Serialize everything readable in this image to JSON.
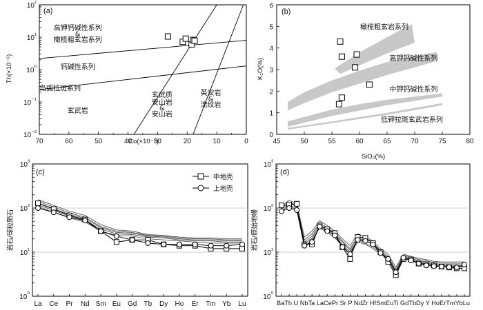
{
  "chart_data": [
    {
      "panel": "(a)",
      "type": "scatter",
      "xlabel": "Co(×10⁻⁶)",
      "ylabel": "Th(×10⁻⁶)",
      "xscale": "linear-reversed",
      "yscale": "log",
      "xlim": [
        70,
        0
      ],
      "ylim": [
        0.01,
        100
      ],
      "xticks": [
        "70",
        "60",
        "50",
        "40",
        "30",
        "20",
        "10",
        "0"
      ],
      "yticks": [
        "10⁻²",
        "10⁻¹",
        "10⁰",
        "10¹",
        "10²"
      ],
      "boundaries": [
        {
          "name": "upper",
          "points": [
            [
              70,
              2.2
            ],
            [
              0,
              8.0
            ]
          ]
        },
        {
          "name": "lower",
          "points": [
            [
              70,
              0.24
            ],
            [
              0,
              1.3
            ]
          ]
        },
        {
          "name": "left-diagonal",
          "points": [
            [
              38,
              0.01
            ],
            [
              10,
              100
            ]
          ]
        },
        {
          "name": "right-diagonal",
          "points": [
            [
              18,
              0.01
            ],
            [
              1,
              100
            ]
          ]
        }
      ],
      "field_labels": [
        {
          "text": "高钾钙碱性系列",
          "x": 57,
          "y": 20
        },
        {
          "text": "&",
          "x": 57,
          "y": 13
        },
        {
          "text": "橄榄粗玄岩系列",
          "x": 57,
          "y": 8.6
        },
        {
          "text": "钙碱性系列",
          "x": 57,
          "y": 1.25
        },
        {
          "text": "岛弧拉斑系列",
          "x": 63,
          "y": 0.27
        },
        {
          "text": "玄武岩",
          "x": 57,
          "y": 0.055
        },
        {
          "text": "玄武质",
          "x": 28.5,
          "y": 0.17
        },
        {
          "text": "安山岩",
          "x": 28.5,
          "y": 0.1
        },
        {
          "text": "&",
          "x": 28.5,
          "y": 0.068
        },
        {
          "text": "安山岩",
          "x": 28.5,
          "y": 0.043
        },
        {
          "text": "英安岩",
          "x": 12,
          "y": 0.2
        },
        {
          "text": "&",
          "x": 12,
          "y": 0.13
        },
        {
          "text": "流纹岩",
          "x": 12,
          "y": 0.085
        }
      ],
      "samples": [
        {
          "x": 26.5,
          "y": 10.5
        },
        {
          "x": 21.5,
          "y": 7.2
        },
        {
          "x": 20.5,
          "y": 9.0
        },
        {
          "x": 18.5,
          "y": 6.0
        },
        {
          "x": 18.0,
          "y": 8.2
        },
        {
          "x": 17.5,
          "y": 7.8
        }
      ]
    },
    {
      "panel": "(b)",
      "type": "scatter",
      "xlabel": "SiO₂(%)",
      "ylabel": "K₂O(%)",
      "xlim": [
        45,
        80
      ],
      "ylim": [
        0,
        6
      ],
      "xticks": [
        "45",
        "50",
        "55",
        "60",
        "65",
        "70",
        "75",
        "80"
      ],
      "yticks": [
        "0",
        "1",
        "2",
        "3",
        "4",
        "5",
        "6"
      ],
      "bands": [
        {
          "name": "shoshonite-boundary",
          "upper": [
            [
              55.5,
              3.05
            ],
            [
              60,
              3.8
            ],
            [
              65,
              4.5
            ],
            [
              69.5,
              5.1
            ]
          ],
          "lower": [
            [
              70,
              4.25
            ],
            [
              65,
              3.75
            ],
            [
              60,
              3.2
            ],
            [
              56.5,
              2.8
            ]
          ]
        },
        {
          "name": "high-k-boundary",
          "upper": [
            [
              47,
              1.5
            ],
            [
              50,
              1.95
            ],
            [
              55,
              2.5
            ],
            [
              60,
              2.95
            ],
            [
              65,
              3.35
            ],
            [
              70,
              3.65
            ],
            [
              74,
              3.8
            ]
          ],
          "lower": [
            [
              74,
              3.4
            ],
            [
              70,
              3.1
            ],
            [
              65,
              2.75
            ],
            [
              60,
              2.35
            ],
            [
              55,
              1.95
            ],
            [
              50,
              1.45
            ],
            [
              47,
              1.1
            ]
          ]
        },
        {
          "name": "medium-k-boundary",
          "upper": [
            [
              47,
              0.6
            ],
            [
              55,
              1.15
            ],
            [
              60,
              1.4
            ],
            [
              65,
              1.6
            ],
            [
              70,
              1.75
            ],
            [
              75,
              1.9
            ]
          ],
          "lower": [
            [
              75,
              1.75
            ],
            [
              70,
              1.55
            ],
            [
              65,
              1.35
            ],
            [
              60,
              1.1
            ],
            [
              55,
              0.85
            ],
            [
              47,
              0.35
            ]
          ]
        },
        {
          "name": "low-k-boundary",
          "upper": [
            [
              47,
              0.3
            ],
            [
              55,
              0.6
            ],
            [
              65,
              1.0
            ],
            [
              75,
              1.45
            ]
          ],
          "lower": [
            [
              75,
              1.35
            ],
            [
              65,
              0.9
            ],
            [
              55,
              0.52
            ],
            [
              47,
              0.22
            ]
          ]
        }
      ],
      "field_labels": [
        {
          "text": "橄榄粗玄岩系列",
          "x": 64.5,
          "y": 5.0
        },
        {
          "text": "高钾钙碱性系列",
          "x": 69.8,
          "y": 3.55
        },
        {
          "text": "中钾钙碱性系列",
          "x": 69.8,
          "y": 2.1
        },
        {
          "text": "低钾拉斑玄武岩系列",
          "x": 69.5,
          "y": 0.7
        }
      ],
      "samples": [
        {
          "x": 56.5,
          "y": 4.3
        },
        {
          "x": 56.8,
          "y": 3.6
        },
        {
          "x": 59.5,
          "y": 3.7
        },
        {
          "x": 59.2,
          "y": 3.1
        },
        {
          "x": 61.8,
          "y": 2.3
        },
        {
          "x": 56.8,
          "y": 1.7
        },
        {
          "x": 56.3,
          "y": 1.4
        }
      ]
    },
    {
      "panel": "(c)",
      "type": "line",
      "ylabel": "岩石/球粒陨石",
      "yscale": "log",
      "ylim": [
        1,
        1000
      ],
      "yticks": [
        "10⁰",
        "10¹",
        "10²",
        "10³"
      ],
      "categories": [
        "La",
        "Ce",
        "Pr",
        "Nd",
        "Sm",
        "Eu",
        "Gd",
        "Tb",
        "Dy",
        "Ho",
        "Er",
        "Tm",
        "Yb",
        "Lu"
      ],
      "legend": [
        "中地壳",
        "上地壳"
      ],
      "samples": [
        [
          155,
          115,
          85,
          68,
          42,
          32,
          30,
          25,
          24,
          22,
          21,
          21,
          20,
          20
        ],
        [
          142,
          105,
          78,
          62,
          38,
          30,
          28,
          24,
          23,
          21,
          20,
          20,
          19,
          19
        ],
        [
          130,
          96,
          72,
          58,
          36,
          28,
          27,
          23,
          22,
          20,
          19,
          19,
          18,
          18
        ],
        [
          118,
          88,
          66,
          53,
          33,
          26,
          25,
          22,
          21,
          19,
          18,
          18,
          17,
          17
        ],
        [
          108,
          80,
          60,
          48,
          30,
          24,
          23,
          20,
          19,
          18,
          17,
          16,
          16,
          16
        ]
      ],
      "series": [
        {
          "name": "中地壳",
          "marker": "square",
          "values": [
            128,
            95,
            68,
            55,
            30,
            17,
            19,
            19,
            15,
            14,
            14,
            12,
            12,
            12
          ]
        },
        {
          "name": "上地壳",
          "marker": "circle",
          "values": [
            100,
            80,
            62,
            52,
            30,
            23,
            19,
            16,
            15,
            15,
            15,
            14,
            14,
            15
          ]
        }
      ]
    },
    {
      "panel": "(d)",
      "type": "line",
      "ylabel": "岩石/原始地幔",
      "yscale": "log",
      "ylim": [
        1,
        1000
      ],
      "yticks": [
        "10⁰",
        "10¹",
        "10²",
        "10³"
      ],
      "categories": [
        "Ba",
        "Th",
        "U",
        "Nb",
        "Ta",
        "La",
        "Ce",
        "Pr",
        "Sr",
        "P",
        "Nd",
        "Zr",
        "Hf",
        "Sm",
        "Eu",
        "Ti",
        "Gd",
        "Tb",
        "Dy",
        "Y",
        "Ho",
        "Er",
        "Tm",
        "Yb",
        "Lu"
      ],
      "tick_label_text": "BaTh U NbTa LaCePr Sr P NdZr HfSmEuTi GdTbDy Y HoErTmYbLu",
      "samples": [
        [
          110,
          150,
          125,
          22,
          30,
          52,
          40,
          30,
          20,
          14,
          26,
          22,
          18,
          12,
          9,
          4.5,
          9,
          8,
          7.2,
          6.8,
          6.2,
          6,
          6,
          6,
          6
        ],
        [
          100,
          135,
          115,
          19,
          26,
          46,
          36,
          27,
          18,
          12,
          23,
          20,
          16,
          11,
          8,
          4,
          8.5,
          7.6,
          6.8,
          6.4,
          5.8,
          5.6,
          5.6,
          5.6,
          5.6
        ],
        [
          95,
          125,
          110,
          17,
          23,
          42,
          33,
          25,
          17,
          11,
          21,
          18,
          15,
          10,
          7.6,
          3.8,
          8,
          7.2,
          6.4,
          6,
          5.5,
          5.3,
          5.2,
          5.2,
          5.2
        ],
        [
          88,
          115,
          100,
          15,
          21,
          38,
          30,
          23,
          15,
          10,
          19,
          16,
          13,
          9.5,
          7.2,
          3.5,
          7.6,
          6.8,
          6,
          5.7,
          5.2,
          5,
          4.9,
          4.9,
          4.9
        ],
        [
          80,
          105,
          95,
          13,
          19,
          35,
          28,
          21,
          14,
          9,
          17,
          15,
          12,
          9,
          7,
          3.2,
          7.2,
          6.4,
          5.7,
          5.4,
          5,
          4.8,
          4.7,
          4.7,
          4.7
        ]
      ],
      "series": [
        {
          "name": "中地壳",
          "marker": "square",
          "values": [
            115,
            120,
            125,
            15,
            15,
            40,
            33,
            27,
            13,
            7,
            22,
            21,
            16,
            10,
            6,
            3,
            7,
            6.8,
            5.5,
            5.3,
            5,
            4.7,
            4.5,
            4.3,
            4.3
          ]
        },
        {
          "name": "上地壳",
          "marker": "circle",
          "values": [
            85,
            100,
            90,
            14,
            17,
            38,
            30,
            24,
            13,
            9,
            19,
            18,
            15,
            9.5,
            7,
            3.5,
            7.5,
            6.5,
            5.5,
            5,
            4.8,
            4.7,
            4.6,
            4.5,
            5.2
          ]
        }
      ]
    }
  ]
}
